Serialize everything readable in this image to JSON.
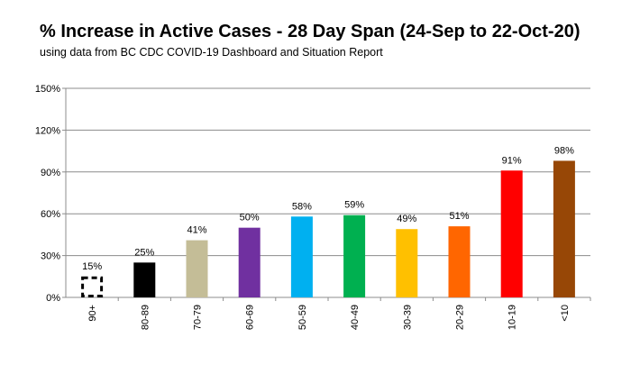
{
  "title": "% Increase in Active Cases - 28 Day Span (24-Sep to 22-Oct-20)",
  "subtitle": "using data from BC CDC COVID-19 Dashboard and Situation Report",
  "chart_data": {
    "type": "bar",
    "title": "% Increase in Active Cases - 28 Day Span (24-Sep to 22-Oct-20)",
    "subtitle": "using data from BC CDC COVID-19 Dashboard and Situation Report",
    "xlabel": "",
    "ylabel": "",
    "ylim": [
      0,
      150
    ],
    "yticks": [
      0,
      30,
      60,
      90,
      120,
      150
    ],
    "ytick_labels": [
      "0%",
      "30%",
      "60%",
      "90%",
      "120%",
      "150%"
    ],
    "grid": true,
    "legend": "none",
    "categories": [
      "90+",
      "80-89",
      "70-79",
      "60-69",
      "50-59",
      "40-49",
      "30-39",
      "20-29",
      "10-19",
      "<10"
    ],
    "values": [
      15,
      25,
      41,
      50,
      58,
      59,
      49,
      51,
      91,
      98
    ],
    "data_labels": [
      "15%",
      "25%",
      "41%",
      "50%",
      "58%",
      "59%",
      "49%",
      "51%",
      "91%",
      "98%"
    ],
    "colors": [
      "#ffffff",
      "#000000",
      "#c4bd97",
      "#7030a0",
      "#00b0f0",
      "#00b050",
      "#ffc000",
      "#ff6600",
      "#ff0000",
      "#974706"
    ],
    "dashed_outline": [
      true,
      false,
      false,
      false,
      false,
      false,
      false,
      false,
      false,
      false
    ]
  }
}
